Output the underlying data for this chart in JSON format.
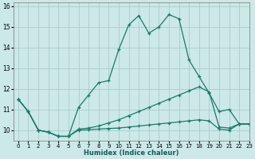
{
  "title": "",
  "xlabel": "Humidex (Indice chaleur)",
  "background_color": "#cce8e8",
  "grid_color": "#aacccc",
  "line_color": "#1a7a6a",
  "xlim": [
    -0.5,
    23
  ],
  "ylim": [
    9.5,
    16.2
  ],
  "xticks": [
    0,
    1,
    2,
    3,
    4,
    5,
    6,
    7,
    8,
    9,
    10,
    11,
    12,
    13,
    14,
    15,
    16,
    17,
    18,
    19,
    20,
    21,
    22,
    23
  ],
  "yticks": [
    10,
    11,
    12,
    13,
    14,
    15,
    16
  ],
  "series1_x": [
    0,
    1,
    2,
    3,
    4,
    5,
    6,
    7,
    8,
    9,
    10,
    11,
    12,
    13,
    14,
    15,
    16,
    17,
    18,
    19,
    20,
    21,
    22,
    23
  ],
  "series1_y": [
    11.5,
    10.9,
    10.0,
    9.9,
    9.7,
    9.7,
    11.1,
    11.7,
    12.3,
    12.4,
    13.9,
    15.1,
    15.55,
    14.7,
    15.0,
    15.6,
    15.4,
    13.4,
    12.6,
    11.8,
    10.9,
    11.0,
    10.3,
    10.3
  ],
  "series2_x": [
    0,
    1,
    2,
    3,
    4,
    5,
    6,
    7,
    8,
    9,
    10,
    11,
    12,
    13,
    14,
    15,
    16,
    17,
    18,
    19,
    20,
    21,
    22,
    23
  ],
  "series2_y": [
    11.5,
    10.9,
    10.0,
    9.9,
    9.7,
    9.7,
    10.05,
    10.1,
    10.2,
    10.35,
    10.5,
    10.7,
    10.9,
    11.1,
    11.3,
    11.5,
    11.7,
    11.9,
    12.1,
    11.85,
    10.15,
    10.1,
    10.3,
    10.3
  ],
  "series3_x": [
    0,
    1,
    2,
    3,
    4,
    5,
    6,
    7,
    8,
    9,
    10,
    11,
    12,
    13,
    14,
    15,
    16,
    17,
    18,
    19,
    20,
    21,
    22,
    23
  ],
  "series3_y": [
    11.5,
    10.9,
    10.0,
    9.9,
    9.7,
    9.7,
    10.0,
    10.02,
    10.05,
    10.08,
    10.1,
    10.15,
    10.2,
    10.25,
    10.3,
    10.35,
    10.4,
    10.45,
    10.5,
    10.45,
    10.05,
    10.0,
    10.3,
    10.3
  ]
}
